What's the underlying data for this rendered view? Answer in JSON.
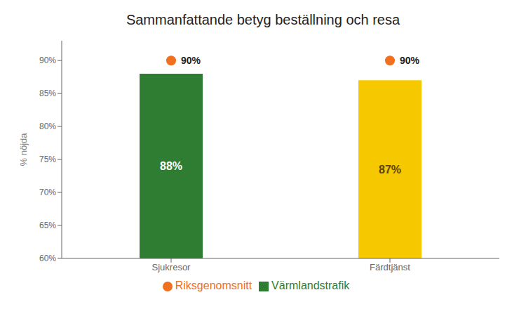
{
  "chart_data": {
    "type": "bar",
    "title": "Sammanfattande betyg beställning och resa",
    "categories": [
      "Sjukresor",
      "Färdtjänst"
    ],
    "ylabel": "% nöjda",
    "ylim": [
      60,
      93
    ],
    "yticks": [
      {
        "value": 60,
        "label": "60%"
      },
      {
        "value": 65,
        "label": "65%"
      },
      {
        "value": 70,
        "label": "70%"
      },
      {
        "value": 75,
        "label": "75%"
      },
      {
        "value": 80,
        "label": "80%"
      },
      {
        "value": 85,
        "label": "85%"
      },
      {
        "value": 90,
        "label": "90%"
      }
    ],
    "grid": false,
    "legend": "bottom",
    "series": [
      {
        "name": "Värmlandstrafik",
        "type": "bar",
        "colors": [
          "#2e7d32",
          "#f5c800"
        ],
        "values": [
          88,
          87
        ],
        "value_labels": [
          "88%",
          "87%"
        ],
        "data_labels": true
      },
      {
        "name": "Riksgenomsnitt",
        "type": "scatter",
        "color": "#f07020",
        "marker": "o",
        "values": [
          90,
          90
        ],
        "value_labels": [
          "90%",
          "90%"
        ],
        "data_labels": true
      }
    ]
  }
}
